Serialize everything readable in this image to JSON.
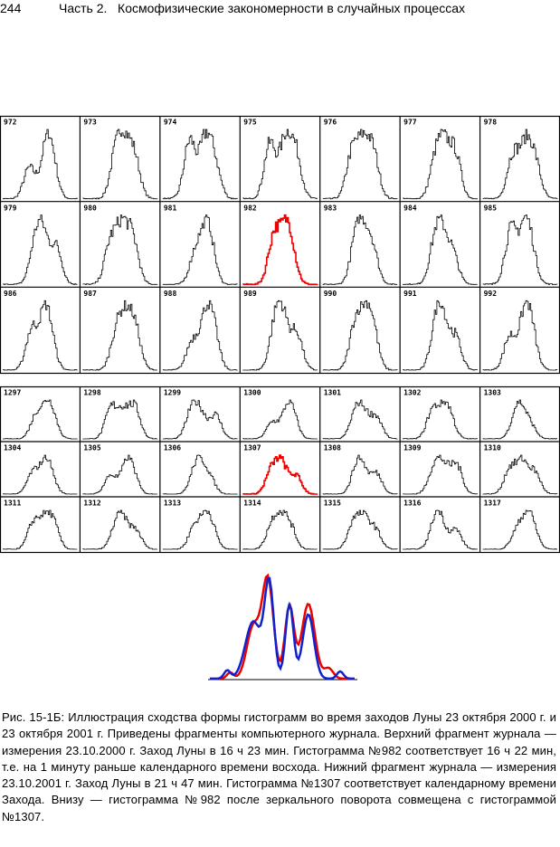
{
  "header": {
    "page_number": "244",
    "running_title": "Часть 2.   Космофизические закономерности в случайных процессах"
  },
  "figure": {
    "top_grid": {
      "labels": [
        "972",
        "973",
        "974",
        "975",
        "976",
        "977",
        "978",
        "979",
        "980",
        "981",
        "982",
        "983",
        "984",
        "985",
        "986",
        "987",
        "988",
        "989",
        "990",
        "991",
        "992"
      ]
    },
    "bottom_grid": {
      "labels": [
        "1297",
        "1298",
        "1299",
        "1300",
        "1301",
        "1302",
        "1303",
        "1304",
        "1305",
        "1306",
        "1307",
        "1308",
        "1309",
        "1310",
        "1311",
        "1312",
        "1313",
        "1314",
        "1315",
        "1316",
        "1317"
      ]
    }
  },
  "caption": "Рис. 15-1Б: Иллюстрация сходства формы гистограмм во время заходов Луны 23 октября 2000 г. и 23 октября 2001 г. Приведены фрагменты компьютерного журнала. Верхний фрагмент журнала — измерения 23.10.2000 г. Заход Луны в 16 ч 23 мин. Гистограмма №982 соответствует 16 ч 22 мин, т.е. на 1 минуту раньше календарного времени восхода. Нижний фрагмент журнала — измерения 23.10.2001 г. Заход Луны в 21 ч 47 мин. Гистограмма №1307 соответствует календарному времени Захода. Внизу — гистограмма №982 после зеркального поворота совмещена с гистограммой №1307."
}
